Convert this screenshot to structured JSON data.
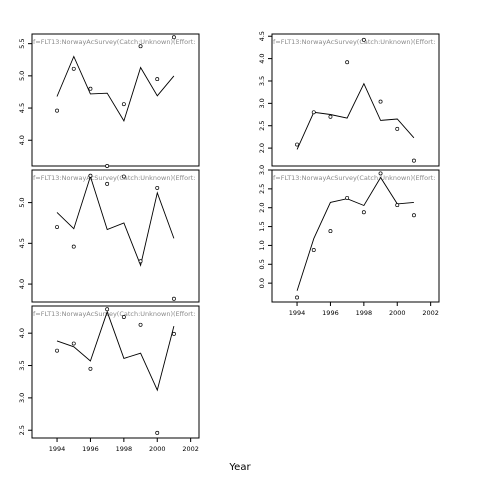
{
  "figure": {
    "xlabel": "Year"
  },
  "chart_data": [
    {
      "type": "scatter",
      "title": "f=FLT13:NorwayAcSurvey(Catch:Unknown)(Effort:",
      "xlim": [
        1992.5,
        2002.5
      ],
      "ylim": [
        3.6,
        5.65
      ],
      "xticks": [],
      "yticks": [
        4.0,
        4.5,
        5.0,
        5.5
      ],
      "ytick_labels": [
        "4.0",
        "4.5",
        "5.0",
        "5.5"
      ],
      "fitted": {
        "x": [
          1994,
          1995,
          1996,
          1997,
          1998,
          1999,
          2000,
          2001
        ],
        "y": [
          4.68,
          5.3,
          4.72,
          4.73,
          4.3,
          5.13,
          4.69,
          5.0
        ]
      },
      "observed": {
        "x": [
          1994,
          1995,
          1996,
          1997,
          1998,
          1999,
          2000,
          2001
        ],
        "y": [
          4.46,
          5.11,
          4.8,
          3.6,
          4.56,
          5.46,
          4.95,
          5.6
        ]
      }
    },
    {
      "type": "scatter",
      "title": "f=FLT13:NorwayAcSurvey(Catch:Unknown)(Effort:",
      "xlim": [
        1992.5,
        2002.5
      ],
      "ylim": [
        1.6,
        4.55
      ],
      "xticks": [],
      "yticks": [
        2.0,
        2.5,
        3.0,
        3.5,
        4.0,
        4.5
      ],
      "ytick_labels": [
        "2.0",
        "2.5",
        "3.0",
        "3.5",
        "4.0",
        "4.5"
      ],
      "fitted": {
        "x": [
          1994,
          1995,
          1996,
          1997,
          1998,
          1999,
          2000,
          2001
        ],
        "y": [
          1.97,
          2.8,
          2.75,
          2.67,
          3.44,
          2.62,
          2.65,
          2.23
        ]
      },
      "observed": {
        "x": [
          1994,
          1995,
          1996,
          1997,
          1998,
          1999,
          2000,
          2001
        ],
        "y": [
          2.08,
          2.8,
          2.7,
          3.92,
          4.42,
          3.04,
          2.43,
          1.72
        ]
      }
    },
    {
      "type": "scatter",
      "title": "f=FLT13:NorwayAcSurvey(Catch:Unknown)(Effort:",
      "xlim": [
        1992.5,
        2002.5
      ],
      "ylim": [
        3.78,
        5.4
      ],
      "xticks": [],
      "yticks": [
        4.0,
        4.5,
        5.0
      ],
      "ytick_labels": [
        "4.0",
        "4.5",
        "5.0"
      ],
      "fitted": {
        "x": [
          1994,
          1995,
          1996,
          1997,
          1998,
          1999,
          2000,
          2001
        ],
        "y": [
          4.88,
          4.68,
          5.32,
          4.67,
          4.75,
          4.23,
          5.12,
          4.56
        ]
      },
      "observed": {
        "x": [
          1994,
          1995,
          1996,
          1997,
          1998,
          1999,
          2000,
          2001
        ],
        "y": [
          4.7,
          4.46,
          5.33,
          5.23,
          5.32,
          4.28,
          5.18,
          3.82
        ]
      }
    },
    {
      "type": "scatter",
      "title": "f=FLT13:NorwayAcSurvey(Catch:Unknown)(Effort:",
      "xlim": [
        1992.5,
        2002.5
      ],
      "ylim": [
        -0.5,
        3.0
      ],
      "xticks": [
        1994,
        1996,
        1998,
        2000,
        2002
      ],
      "xtick_labels": [
        "1994",
        "1996",
        "1998",
        "2000",
        "2002"
      ],
      "yticks": [
        0.0,
        0.5,
        1.0,
        1.5,
        2.0,
        2.5,
        3.0
      ],
      "ytick_labels": [
        "0.0",
        "0.5",
        "1.0",
        "1.5",
        "2.0",
        "2.5",
        "3.0"
      ],
      "fitted": {
        "x": [
          1994,
          1995,
          1996,
          1997,
          1998,
          1999,
          2000,
          2001
        ],
        "y": [
          -0.2,
          1.18,
          2.14,
          2.24,
          2.06,
          2.8,
          2.1,
          2.14
        ]
      },
      "observed": {
        "x": [
          1994,
          1995,
          1996,
          1997,
          1998,
          1999,
          2000,
          2001
        ],
        "y": [
          -0.38,
          0.88,
          1.38,
          2.26,
          1.88,
          2.91,
          2.07,
          1.8
        ]
      }
    },
    {
      "type": "scatter",
      "title": "f=FLT13:NorwayAcSurvey(Catch:Unknown)(Effort:",
      "xlim": [
        1992.5,
        2002.5
      ],
      "ylim": [
        2.38,
        4.42
      ],
      "xticks": [
        1994,
        1996,
        1998,
        2000,
        2002
      ],
      "xtick_labels": [
        "1994",
        "1996",
        "1998",
        "2000",
        "2002"
      ],
      "yticks": [
        2.5,
        3.0,
        3.5,
        4.0
      ],
      "ytick_labels": [
        "2.5",
        "3.0",
        "3.5",
        "4.0"
      ],
      "fitted": {
        "x": [
          1994,
          1995,
          1996,
          1997,
          1998,
          1999,
          2000,
          2001
        ],
        "y": [
          3.88,
          3.79,
          3.57,
          4.33,
          3.61,
          3.69,
          3.12,
          4.11
        ]
      },
      "observed": {
        "x": [
          1994,
          1995,
          1996,
          1997,
          1998,
          1999,
          2000,
          2001
        ],
        "y": [
          3.73,
          3.84,
          3.45,
          4.37,
          4.25,
          4.13,
          2.46,
          3.99
        ]
      }
    }
  ]
}
